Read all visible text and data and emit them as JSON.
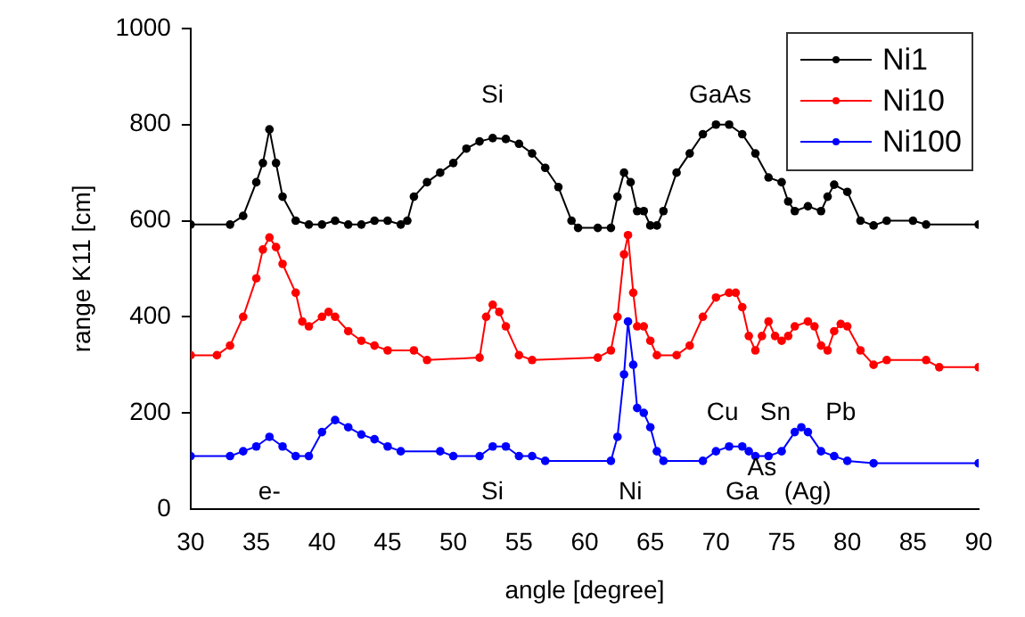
{
  "chart_data": {
    "type": "line",
    "xlabel": "angle [degree]",
    "ylabel": "range K11 [cm]",
    "xlim": [
      30,
      90
    ],
    "xticks": [
      30,
      35,
      40,
      45,
      50,
      55,
      60,
      65,
      70,
      75,
      80,
      85,
      90
    ],
    "ylim": [
      0,
      1000
    ],
    "yticks": [
      0,
      200,
      400,
      600,
      800,
      1000
    ],
    "grid": false,
    "legend": "top right",
    "marker": "circle",
    "line_style": "solid",
    "series": [
      {
        "name": "Ni1",
        "color": "#000000",
        "x": [
          30,
          33,
          34,
          35,
          35.5,
          36,
          36.5,
          37,
          38,
          39,
          40,
          41,
          42,
          43,
          44,
          45,
          46,
          46.5,
          47,
          48,
          49,
          50,
          51,
          52,
          53,
          54,
          55,
          56,
          57,
          58,
          59,
          59.5,
          61,
          62,
          62.5,
          63,
          63.5,
          64,
          64.5,
          65,
          65.5,
          66,
          67,
          68,
          69,
          70,
          71,
          72,
          73,
          74,
          75,
          75.5,
          76,
          77,
          78,
          78.5,
          79,
          80,
          81,
          82,
          83,
          85,
          86,
          90
        ],
        "values": [
          592,
          592,
          610,
          680,
          720,
          790,
          720,
          650,
          600,
          592,
          592,
          600,
          592,
          592,
          600,
          600,
          592,
          600,
          650,
          680,
          700,
          720,
          750,
          765,
          772,
          770,
          760,
          740,
          710,
          670,
          600,
          585,
          585,
          585,
          650,
          700,
          680,
          620,
          620,
          590,
          590,
          620,
          700,
          740,
          780,
          800,
          800,
          780,
          740,
          690,
          680,
          640,
          620,
          630,
          620,
          650,
          675,
          660,
          600,
          590,
          600,
          600,
          592,
          592
        ]
      },
      {
        "name": "Ni10",
        "color": "#ff0000",
        "x": [
          30,
          32,
          33,
          34,
          35,
          35.5,
          36,
          36.5,
          37,
          38,
          38.5,
          39,
          40,
          40.5,
          41,
          42,
          43,
          44,
          45,
          47,
          48,
          52,
          52.5,
          53,
          53.5,
          54,
          55,
          56,
          61,
          62,
          62.5,
          63,
          63.3,
          63.7,
          64,
          64.5,
          65,
          65.5,
          67,
          68,
          69,
          70,
          71,
          71.5,
          72,
          72.5,
          73,
          73.5,
          74,
          74.5,
          75,
          75.5,
          76,
          77,
          77.5,
          78,
          78.5,
          79,
          79.5,
          80,
          81,
          82,
          83,
          86,
          87,
          90
        ],
        "values": [
          320,
          320,
          340,
          400,
          480,
          540,
          565,
          545,
          510,
          450,
          390,
          380,
          400,
          410,
          400,
          370,
          350,
          340,
          330,
          330,
          310,
          315,
          400,
          425,
          410,
          380,
          320,
          310,
          315,
          330,
          400,
          530,
          570,
          450,
          380,
          380,
          350,
          320,
          320,
          340,
          400,
          440,
          450,
          450,
          420,
          360,
          330,
          360,
          390,
          360,
          350,
          360,
          380,
          390,
          380,
          340,
          330,
          370,
          385,
          380,
          330,
          300,
          310,
          310,
          295,
          295
        ]
      },
      {
        "name": "Ni100",
        "color": "#0000ff",
        "x": [
          30,
          33,
          34,
          35,
          36,
          37,
          38,
          39,
          40,
          41,
          42,
          43,
          44,
          45,
          46,
          49,
          50,
          52,
          53,
          54,
          55,
          56,
          57,
          62,
          62.5,
          63,
          63.3,
          63.7,
          64,
          64.5,
          65,
          65.5,
          66,
          69,
          70,
          71,
          72,
          72.5,
          73,
          74,
          75,
          76,
          76.5,
          77,
          78,
          79,
          80,
          82,
          90
        ],
        "values": [
          110,
          110,
          120,
          130,
          150,
          130,
          110,
          110,
          160,
          185,
          170,
          155,
          145,
          130,
          120,
          120,
          110,
          110,
          130,
          130,
          110,
          110,
          100,
          100,
          150,
          280,
          390,
          300,
          210,
          200,
          170,
          120,
          100,
          100,
          120,
          130,
          130,
          120,
          110,
          110,
          120,
          160,
          170,
          160,
          120,
          110,
          100,
          95,
          95
        ]
      }
    ],
    "annotations": [
      "Si",
      "GaAs",
      "e-",
      "Si",
      "Ni",
      "Ga",
      "As",
      "(Ag)",
      "Cu",
      "Sn",
      "Pb"
    ]
  }
}
